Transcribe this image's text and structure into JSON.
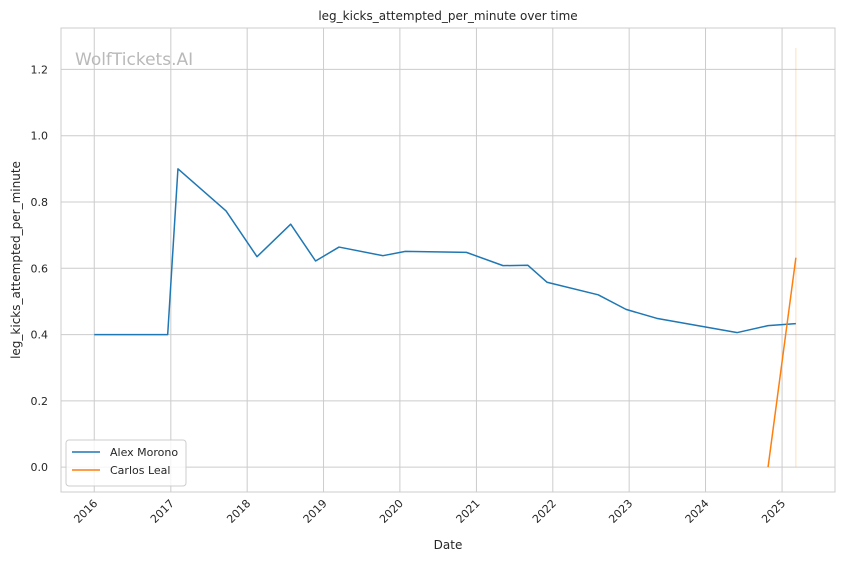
{
  "chart_data": {
    "type": "line",
    "title": "leg_kicks_attempted_per_minute over time",
    "xlabel": "Date",
    "ylabel": "leg_kicks_attempted_per_minute",
    "watermark": "WolfTickets.AI",
    "x_ticks": [
      "2016",
      "2017",
      "2018",
      "2019",
      "2020",
      "2021",
      "2022",
      "2023",
      "2024",
      "2025"
    ],
    "y_ticks": [
      "0.0",
      "0.2",
      "0.4",
      "0.6",
      "0.8",
      "1.0",
      "1.2"
    ],
    "xlim": [
      "2015-07-26",
      "2025-09-11"
    ],
    "ylim": [
      -0.075,
      1.325
    ],
    "grid": true,
    "legend_position": "lower-left",
    "series": [
      {
        "name": "Alex Morono",
        "color": "#1f77b4",
        "points": [
          [
            "2016-01-01",
            0.4
          ],
          [
            "2016-12-17",
            0.4
          ],
          [
            "2017-02-04",
            0.9
          ],
          [
            "2017-09-22",
            0.773
          ],
          [
            "2018-02-17",
            0.635
          ],
          [
            "2018-07-28",
            0.733
          ],
          [
            "2018-11-24",
            0.622
          ],
          [
            "2019-03-16",
            0.664
          ],
          [
            "2019-10-12",
            0.638
          ],
          [
            "2020-01-27",
            0.651
          ],
          [
            "2020-11-14",
            0.648
          ],
          [
            "2021-05-08",
            0.608
          ],
          [
            "2021-09-04",
            0.609
          ],
          [
            "2021-12-04",
            0.558
          ],
          [
            "2022-08-06",
            0.52
          ],
          [
            "2022-12-17",
            0.476
          ],
          [
            "2023-05-13",
            0.449
          ],
          [
            "2024-06-01",
            0.406
          ],
          [
            "2024-10-26",
            0.427
          ],
          [
            "2025-03-08",
            0.433
          ]
        ]
      },
      {
        "name": "Carlos Leal",
        "color": "#ff7f0e",
        "points": [
          [
            "2024-10-26",
            0.0
          ],
          [
            "2025-03-08",
            0.632
          ]
        ]
      }
    ],
    "highlight_lines": [
      {
        "x": "2025-03-08",
        "color": "#ff7f0e"
      }
    ]
  }
}
